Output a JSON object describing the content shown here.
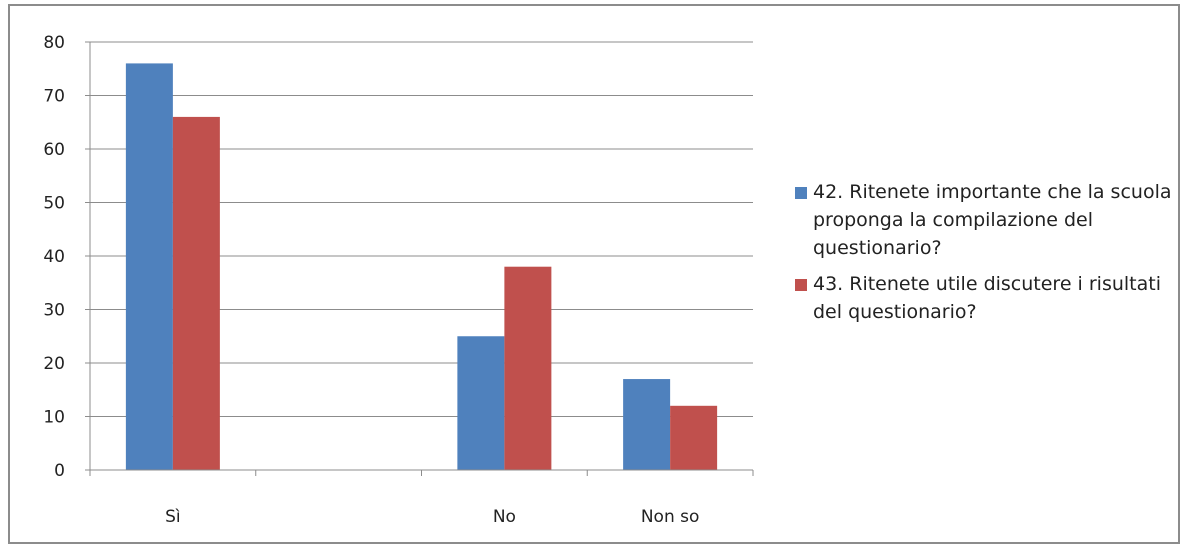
{
  "chart_data": {
    "type": "bar",
    "categories": [
      "Sì",
      "",
      "No",
      "Non so"
    ],
    "series": [
      {
        "name": "42.   Ritenete importante che la scuola proponga la compilazione del questionario?",
        "values": [
          76,
          null,
          25,
          17
        ],
        "color": "#4f81bd"
      },
      {
        "name": "43.   Ritenete utile discutere i risultati del questionario?",
        "values": [
          66,
          null,
          38,
          12
        ],
        "color": "#c0504d"
      }
    ],
    "y_ticks": [
      "0",
      "10",
      "20",
      "30",
      "40",
      "50",
      "60",
      "70",
      "80"
    ],
    "ylim": [
      0,
      80
    ],
    "grid": true,
    "legend_position": "right"
  }
}
